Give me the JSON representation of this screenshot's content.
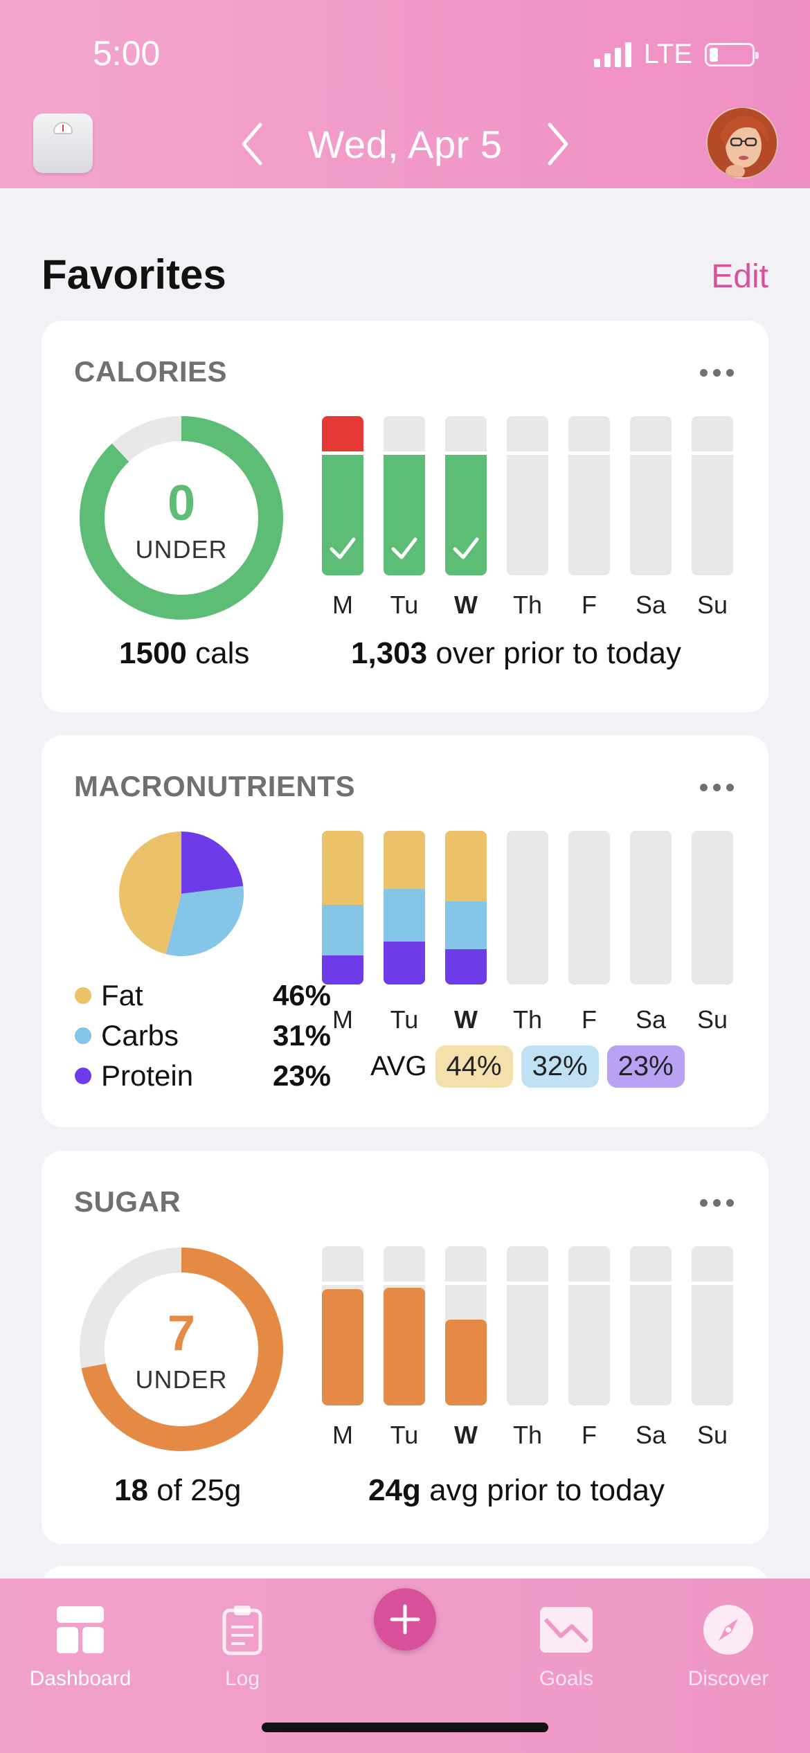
{
  "status_bar": {
    "time": "5:00",
    "network": "LTE"
  },
  "header": {
    "date": "Wed, Apr 5"
  },
  "favorites": {
    "title": "Favorites",
    "edit_label": "Edit"
  },
  "days": [
    "M",
    "Tu",
    "W",
    "Th",
    "F",
    "Sa",
    "Su"
  ],
  "calories": {
    "title": "CALORIES",
    "ring_value": "0",
    "ring_label": "UNDER",
    "ring_progress": 0.88,
    "goal_number": "1500",
    "goal_unit": "cals",
    "prior_number": "1,303",
    "prior_text": "over prior to today",
    "week_values": [
      1.0,
      0.78,
      0.78,
      0,
      0,
      0,
      0
    ],
    "over_days": [
      true,
      false,
      false,
      false,
      false,
      false,
      false
    ],
    "checked_days": [
      true,
      true,
      true,
      false,
      false,
      false,
      false
    ],
    "colors": {
      "on_track": "#5dbd74",
      "over": "#e53935",
      "empty": "#e8e8e8"
    }
  },
  "macronutrients": {
    "title": "MACRONUTRIENTS",
    "pie": [
      {
        "name": "Fat",
        "pct": 46,
        "color": "#ebc26a"
      },
      {
        "name": "Carbs",
        "pct": 31,
        "color": "#85c5e8"
      },
      {
        "name": "Protein",
        "pct": 23,
        "color": "#6e3be8"
      }
    ],
    "legend": [
      {
        "name": "Fat",
        "pct": "46%",
        "color": "#ebc26a"
      },
      {
        "name": "Carbs",
        "pct": "31%",
        "color": "#85c5e8"
      },
      {
        "name": "Protein",
        "pct": "23%",
        "color": "#6e3be8"
      }
    ],
    "week": [
      {
        "fat": 48,
        "carbs": 33,
        "protein": 19
      },
      {
        "fat": 38,
        "carbs": 34,
        "protein": 28
      },
      {
        "fat": 46,
        "carbs": 31,
        "protein": 23
      },
      null,
      null,
      null,
      null
    ],
    "avg_label": "AVG",
    "avg": [
      {
        "value": "44%",
        "color": "#f4e0ad"
      },
      {
        "value": "32%",
        "color": "#bfe1f3"
      },
      {
        "value": "23%",
        "color": "#b9a2f4"
      }
    ]
  },
  "sugar": {
    "title": "SUGAR",
    "ring_value": "7",
    "ring_label": "UNDER",
    "ring_progress": 0.72,
    "consumed": "18",
    "goal_text": "of 25g",
    "avg_number": "24g",
    "avg_text": "avg prior to today",
    "week_values": [
      0.73,
      0.74,
      0.54,
      0,
      0,
      0,
      0
    ],
    "color": "#e48a44"
  },
  "tabs": [
    {
      "label": "Dashboard",
      "icon": "dashboard-icon"
    },
    {
      "label": "Log",
      "icon": "clipboard-icon"
    },
    {
      "label": "Goals",
      "icon": "goals-icon"
    },
    {
      "label": "Discover",
      "icon": "compass-icon"
    }
  ],
  "colors": {
    "accent": "#d8519a",
    "header_pink": "#ef8fc3"
  }
}
